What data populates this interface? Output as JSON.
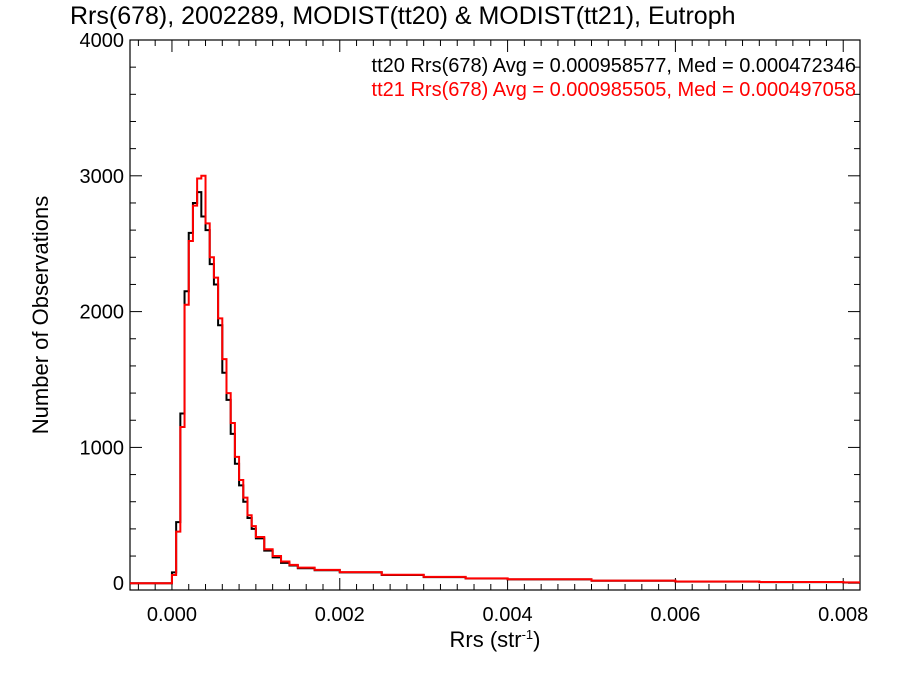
{
  "chart_data": {
    "type": "line",
    "title": "Rrs(678), 2002289, MODIST(tt20) & MODIST(tt21), Eutroph",
    "xlabel": "Rrs (str",
    "xlabel_superscript": "-1",
    "xlabel_suffix": ")",
    "ylabel": "Number of Observations",
    "xlim": [
      -0.0005,
      0.0082
    ],
    "ylim": [
      -50,
      4000
    ],
    "x_ticks": [
      0.0,
      0.002,
      0.004,
      0.006,
      0.008
    ],
    "x_tick_labels": [
      "0.000",
      "0.002",
      "0.004",
      "0.006",
      "0.008"
    ],
    "y_ticks": [
      0,
      1000,
      2000,
      3000,
      4000
    ],
    "y_tick_labels": [
      "0",
      "1000",
      "2000",
      "3000",
      "4000"
    ],
    "grid": false,
    "legend_position": "top-right",
    "series": [
      {
        "name": "tt20",
        "legend": "tt20 Rrs(678) Avg = 0.000958577, Med = 0.000472346",
        "color": "#000000",
        "x": [
          -0.0005,
          -0.0001,
          0.0,
          5e-05,
          0.0001,
          0.00015,
          0.0002,
          0.00025,
          0.0003,
          0.00035,
          0.0004,
          0.00045,
          0.0005,
          0.00055,
          0.0006,
          0.00065,
          0.0007,
          0.00075,
          0.0008,
          0.00085,
          0.0009,
          0.00095,
          0.001,
          0.0011,
          0.0012,
          0.0013,
          0.0014,
          0.0015,
          0.0017,
          0.002,
          0.0025,
          0.003,
          0.0035,
          0.004,
          0.005,
          0.006,
          0.007,
          0.008,
          0.0082
        ],
        "values": [
          0,
          0,
          80,
          450,
          1250,
          2150,
          2580,
          2800,
          2880,
          2700,
          2600,
          2350,
          2200,
          1900,
          1550,
          1350,
          1100,
          880,
          720,
          600,
          480,
          400,
          330,
          240,
          190,
          150,
          130,
          110,
          95,
          80,
          60,
          45,
          35,
          28,
          18,
          12,
          8,
          5,
          5
        ]
      },
      {
        "name": "tt21",
        "legend": "tt21 Rrs(678) Avg = 0.000985505, Med = 0.000497058",
        "color": "#ff0000",
        "x": [
          -0.0005,
          -0.0001,
          0.0,
          5e-05,
          0.0001,
          0.00015,
          0.0002,
          0.00025,
          0.0003,
          0.00035,
          0.0004,
          0.00045,
          0.0005,
          0.00055,
          0.0006,
          0.00065,
          0.0007,
          0.00075,
          0.0008,
          0.00085,
          0.0009,
          0.00095,
          0.001,
          0.0011,
          0.0012,
          0.0013,
          0.0014,
          0.0015,
          0.0017,
          0.002,
          0.0025,
          0.003,
          0.0035,
          0.004,
          0.005,
          0.006,
          0.007,
          0.008,
          0.0082
        ],
        "values": [
          0,
          0,
          60,
          380,
          1150,
          2050,
          2520,
          2780,
          2980,
          3000,
          2650,
          2400,
          2250,
          1950,
          1650,
          1400,
          1180,
          930,
          760,
          630,
          500,
          420,
          340,
          250,
          200,
          160,
          135,
          115,
          98,
          82,
          62,
          47,
          36,
          29,
          19,
          13,
          9,
          6,
          6
        ]
      }
    ]
  }
}
